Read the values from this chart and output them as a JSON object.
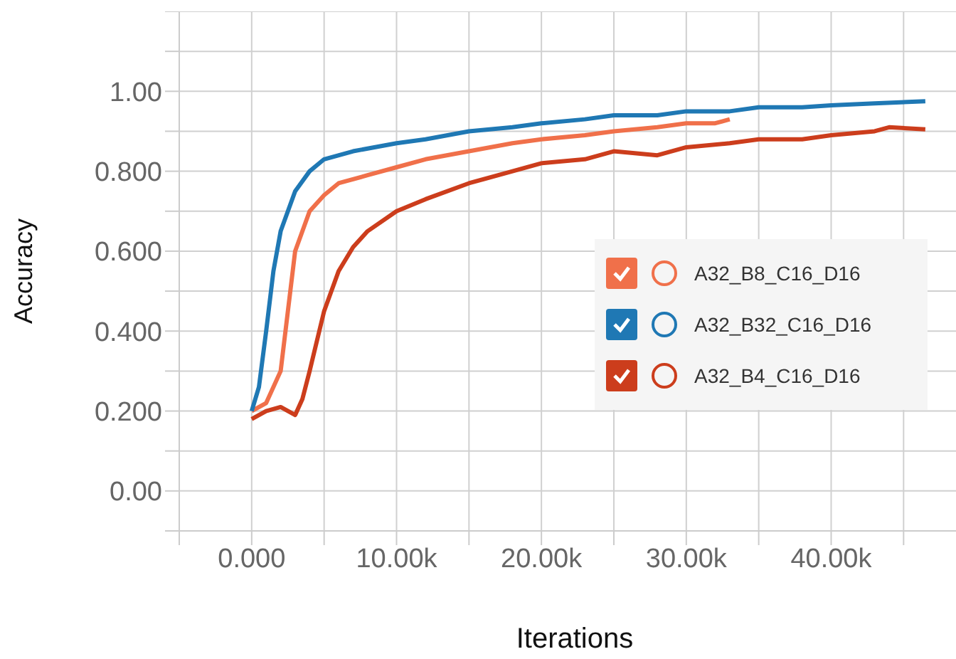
{
  "chart_data": {
    "type": "line",
    "xlabel": "Iterations",
    "ylabel": "Accuracy",
    "xlim": [
      -5000,
      49600
    ],
    "xticks": [
      {
        "value": -5000,
        "label": null
      },
      {
        "value": 0,
        "label": "0.000"
      },
      {
        "value": 5000,
        "label": null
      },
      {
        "value": 10000,
        "label": "10.00k"
      },
      {
        "value": 15000,
        "label": null
      },
      {
        "value": 20000,
        "label": "20.00k"
      },
      {
        "value": 25000,
        "label": null
      },
      {
        "value": 30000,
        "label": "30.00k"
      },
      {
        "value": 35000,
        "label": null
      },
      {
        "value": 40000,
        "label": "40.00k"
      },
      {
        "value": 45000,
        "label": null
      }
    ],
    "ylim": [
      -0.1,
      1.2
    ],
    "yticks": [
      {
        "value": -0.1,
        "label": null
      },
      {
        "value": 0,
        "label": "0.00"
      },
      {
        "value": 0.1,
        "label": null
      },
      {
        "value": 0.2,
        "label": "0.200"
      },
      {
        "value": 0.3,
        "label": null
      },
      {
        "value": 0.4,
        "label": "0.400"
      },
      {
        "value": 0.5,
        "label": null
      },
      {
        "value": 0.6,
        "label": "0.600"
      },
      {
        "value": 0.7,
        "label": null
      },
      {
        "value": 0.8,
        "label": "0.800"
      },
      {
        "value": 0.9,
        "label": null
      },
      {
        "value": 1.0,
        "label": "1.00"
      },
      {
        "value": 1.1,
        "label": null
      },
      {
        "value": 1.2,
        "label": null
      }
    ],
    "grid": true,
    "legend": "right",
    "marker": "none",
    "line_style": "solid",
    "series": [
      {
        "name": "A32_B8_C16_D16",
        "color": "#f0704a",
        "x": [
          0,
          1000,
          2000,
          2500,
          3000,
          4000,
          5000,
          6000,
          8000,
          10000,
          12000,
          15000,
          18000,
          20000,
          23000,
          25000,
          28000,
          30000,
          32000,
          33000
        ],
        "values": [
          0.2,
          0.22,
          0.3,
          0.45,
          0.6,
          0.7,
          0.74,
          0.77,
          0.79,
          0.81,
          0.83,
          0.85,
          0.87,
          0.88,
          0.89,
          0.9,
          0.91,
          0.92,
          0.92,
          0.93
        ]
      },
      {
        "name": "A32_B32_C16_D16",
        "color": "#1f78b4",
        "x": [
          0,
          500,
          1000,
          1500,
          2000,
          3000,
          4000,
          5000,
          7000,
          10000,
          12000,
          15000,
          18000,
          20000,
          23000,
          25000,
          28000,
          30000,
          33000,
          35000,
          38000,
          40000,
          43000,
          46500
        ],
        "values": [
          0.2,
          0.26,
          0.4,
          0.55,
          0.65,
          0.75,
          0.8,
          0.83,
          0.85,
          0.87,
          0.88,
          0.9,
          0.91,
          0.92,
          0.93,
          0.94,
          0.94,
          0.95,
          0.95,
          0.96,
          0.96,
          0.965,
          0.97,
          0.975
        ]
      },
      {
        "name": "A32_B4_C16_D16",
        "color": "#cc3d1c",
        "x": [
          0,
          1000,
          2000,
          3000,
          3500,
          4000,
          5000,
          6000,
          7000,
          8000,
          10000,
          12000,
          15000,
          18000,
          20000,
          23000,
          25000,
          28000,
          30000,
          33000,
          35000,
          38000,
          40000,
          43000,
          44000,
          46500
        ],
        "values": [
          0.18,
          0.2,
          0.21,
          0.19,
          0.23,
          0.3,
          0.45,
          0.55,
          0.61,
          0.65,
          0.7,
          0.73,
          0.77,
          0.8,
          0.82,
          0.83,
          0.85,
          0.84,
          0.86,
          0.87,
          0.88,
          0.88,
          0.89,
          0.9,
          0.91,
          0.905
        ]
      }
    ]
  }
}
